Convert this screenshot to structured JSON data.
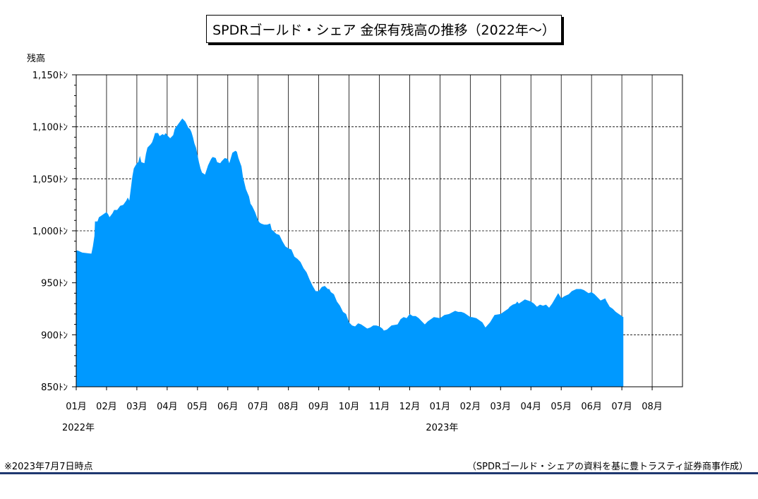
{
  "title": "SPDRゴールド・シェア 金保有残高の推移（2022年～）",
  "footer": {
    "note": "※2023年7月7日時点",
    "source": "（SPDRゴールド・シェアの資料を基に豊トラスティ証券商事作成）"
  },
  "colors": {
    "fill": "#0099ff",
    "frame": "#000000",
    "footer_rule": "#1f3870"
  },
  "chart_data": {
    "type": "area",
    "title": "SPDRゴールド・シェア 金保有残高の推移（2022年～）",
    "ylabel": "残高",
    "ylim": [
      850,
      1150
    ],
    "yticks": [
      850,
      900,
      950,
      1000,
      1050,
      1100,
      1150
    ],
    "ytick_labels": [
      "850ﾄﾝ",
      "900ﾄﾝ",
      "950ﾄﾝ",
      "1,000ﾄﾝ",
      "1,050ﾄﾝ",
      "1,100ﾄﾝ",
      "1,150ﾄﾝ"
    ],
    "xlim": [
      0,
      20
    ],
    "xticks": [
      "01月",
      "02月",
      "03月",
      "04月",
      "05月",
      "06月",
      "07月",
      "08月",
      "09月",
      "10月",
      "11月",
      "12月",
      "01月",
      "02月",
      "03月",
      "04月",
      "05月",
      "06月",
      "07月",
      "08月"
    ],
    "year_labels": [
      {
        "label": "2022年",
        "month_index": 0
      },
      {
        "label": "2023年",
        "month_index": 12
      }
    ],
    "grid": {
      "horizontal_dashed": true,
      "vertical": true
    },
    "series": [
      {
        "x": [
          0,
          0.05,
          0.2,
          0.5,
          0.55,
          0.6,
          0.62,
          0.7,
          0.75,
          0.8,
          0.9,
          1.0,
          1.05,
          1.1,
          1.2,
          1.25,
          1.35,
          1.45,
          1.55,
          1.65,
          1.7,
          1.75,
          1.85,
          1.9,
          2.0,
          2.05,
          2.1,
          2.15,
          2.25,
          2.3,
          2.35,
          2.45,
          2.5,
          2.55,
          2.6,
          2.7,
          2.75,
          2.85,
          2.9,
          2.95,
          3.0,
          3.1,
          3.2,
          3.25,
          3.3,
          3.4,
          3.5,
          3.6,
          3.65,
          3.7,
          3.75,
          3.8,
          3.85,
          3.9,
          3.95,
          4.0,
          4.05,
          4.1,
          4.15,
          4.25,
          4.35,
          4.45,
          4.5,
          4.6,
          4.65,
          4.75,
          4.8,
          4.9,
          5.0,
          5.05,
          5.15,
          5.25,
          5.3,
          5.35,
          5.45,
          5.5,
          5.6,
          5.7,
          5.75,
          5.8,
          5.85,
          5.9,
          6.0,
          6.05,
          6.1,
          6.2,
          6.3,
          6.4,
          6.45,
          6.5,
          6.6,
          6.7,
          6.8,
          6.9,
          7.0,
          7.1,
          7.2,
          7.3,
          7.4,
          7.5,
          7.6,
          7.7,
          7.8,
          7.9,
          8.0,
          8.1,
          8.2,
          8.3,
          8.35,
          8.4,
          8.5,
          8.6,
          8.7,
          8.8,
          8.9,
          9.0,
          9.1,
          9.2,
          9.3,
          9.4,
          9.5,
          9.6,
          9.7,
          9.8,
          9.9,
          10.0,
          10.1,
          10.15,
          10.25,
          10.4,
          10.6,
          10.7,
          10.8,
          10.9,
          11.0,
          11.1,
          11.2,
          11.3,
          11.4,
          11.5,
          11.6,
          11.7,
          11.8,
          12.0,
          12.15,
          12.3,
          12.5,
          12.6,
          12.7,
          12.8,
          12.9,
          13.0,
          13.05,
          13.2,
          13.4,
          13.5,
          13.65,
          13.8,
          14.0,
          14.15,
          14.25,
          14.3,
          14.4,
          14.5,
          14.55,
          14.6,
          14.7,
          14.8,
          15.0,
          15.1,
          15.2,
          15.3,
          15.4,
          15.5,
          15.6,
          15.7,
          15.8,
          15.9,
          16.0,
          16.1,
          16.25,
          16.35,
          16.5,
          16.65,
          16.75,
          16.9,
          17.0,
          17.1,
          17.3,
          17.45,
          17.5,
          17.6,
          17.7,
          17.8,
          17.9,
          18.05
        ],
        "values": [
          981,
          981,
          979,
          978,
          985,
          995,
          1009,
          1009,
          1013,
          1014,
          1016,
          1018,
          1016,
          1013,
          1017,
          1020,
          1020,
          1024,
          1025,
          1029,
          1032,
          1029,
          1052,
          1060,
          1065,
          1066,
          1072,
          1066,
          1065,
          1074,
          1080,
          1083,
          1085,
          1089,
          1094,
          1094,
          1091,
          1093,
          1092,
          1094,
          1092,
          1089,
          1092,
          1098,
          1100,
          1104,
          1108,
          1105,
          1102,
          1099,
          1098,
          1095,
          1090,
          1084,
          1080,
          1073,
          1066,
          1060,
          1056,
          1054,
          1063,
          1069,
          1071,
          1070,
          1066,
          1065,
          1067,
          1070,
          1069,
          1065,
          1075,
          1077,
          1076,
          1070,
          1062,
          1052,
          1040,
          1033,
          1026,
          1024,
          1021,
          1018,
          1010,
          1008,
          1007,
          1006,
          1006,
          1007,
          1001,
          1000,
          997,
          996,
          990,
          985,
          983,
          982,
          975,
          973,
          970,
          964,
          960,
          953,
          947,
          942,
          942,
          946,
          947,
          944,
          944,
          941,
          939,
          932,
          928,
          922,
          920,
          912,
          909,
          908,
          911,
          910,
          908,
          906,
          907,
          909,
          909,
          908,
          906,
          904,
          905,
          909,
          910,
          915,
          917,
          916,
          920,
          918,
          918,
          916,
          913,
          910,
          913,
          915,
          917,
          916,
          919,
          920,
          923,
          922,
          922,
          921,
          919,
          917,
          917,
          916,
          912,
          907,
          912,
          919,
          920,
          923,
          925,
          927,
          929,
          930,
          932,
          930,
          932,
          934,
          932,
          930,
          927,
          929,
          928,
          929,
          926,
          930,
          935,
          940,
          935,
          937,
          939,
          942,
          944,
          944,
          943,
          940,
          941,
          939,
          933,
          935,
          932,
          927,
          925,
          922,
          920,
          917
        ]
      }
    ]
  }
}
